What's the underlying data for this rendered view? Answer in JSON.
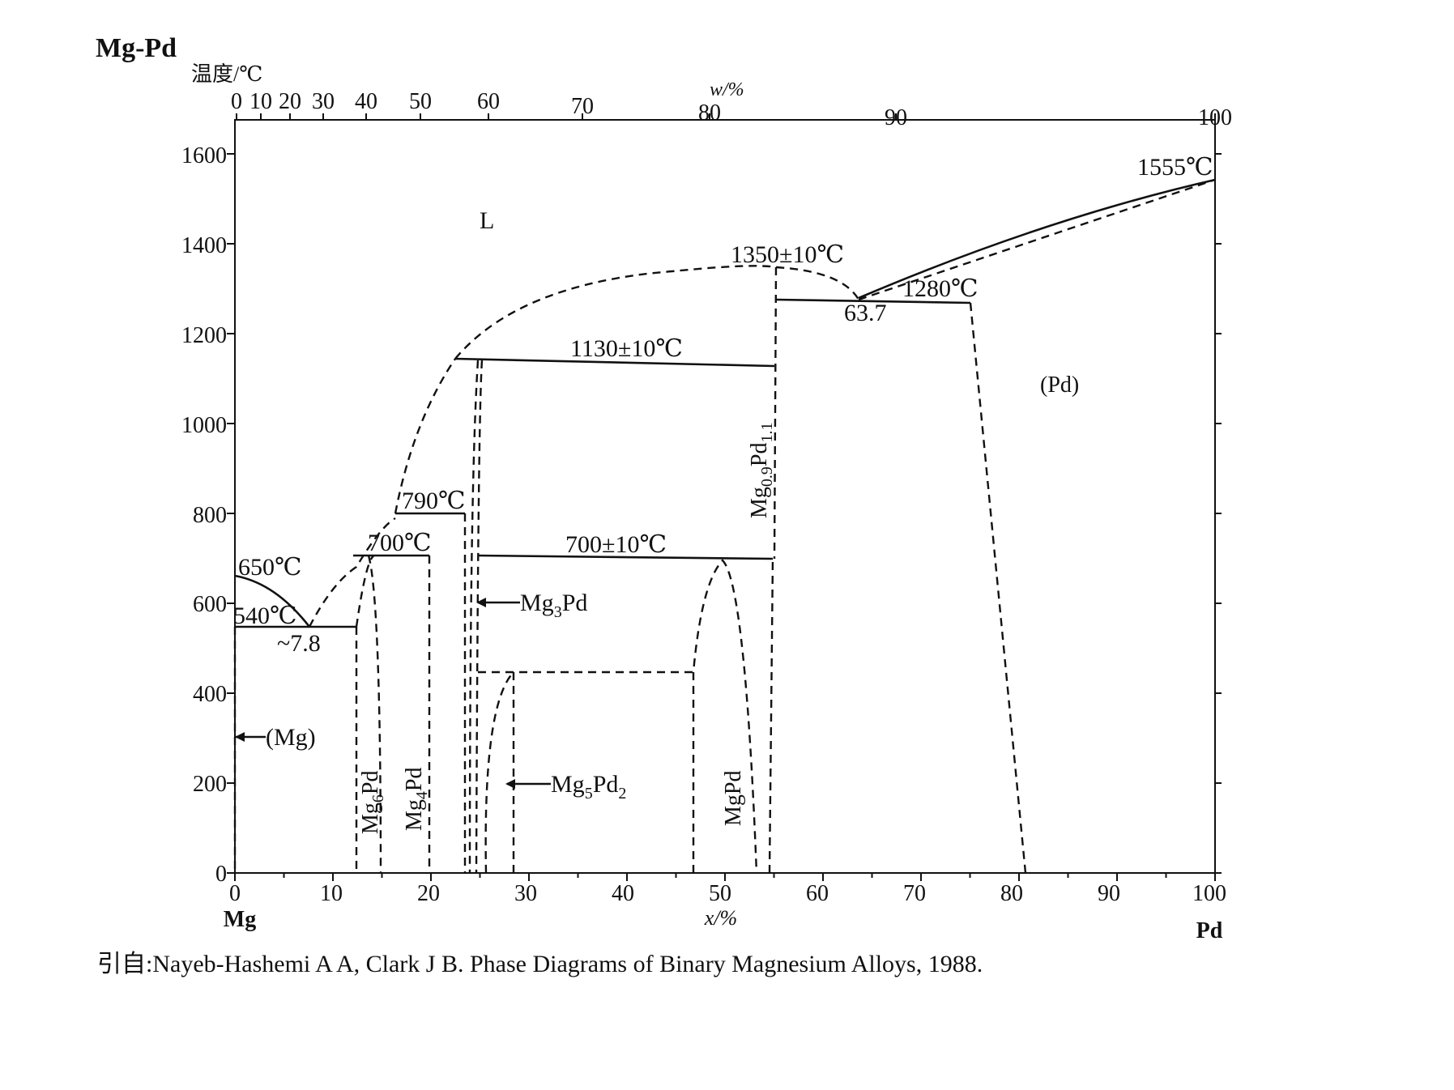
{
  "diagram": {
    "system_title": "Mg-Pd",
    "y_axis_label": "温度/℃",
    "top_axis_label": "w/%",
    "bottom_axis_label": "x/%",
    "left_element": "Mg",
    "right_element": "Pd",
    "y_ticks": [
      "0",
      "200",
      "400",
      "600",
      "800",
      "1000",
      "1200",
      "1400",
      "1600"
    ],
    "bottom_ticks": [
      "0",
      "10",
      "20",
      "30",
      "40",
      "50",
      "60",
      "70",
      "80",
      "90",
      "100"
    ],
    "top_ticks": [
      "0",
      "10",
      "20",
      "30",
      "40",
      "50",
      "60",
      "70",
      "80",
      "90",
      "100"
    ]
  },
  "regions": {
    "liquid": "L",
    "pd_solid": "(Pd)",
    "mg_solid": "(Mg)"
  },
  "phases": {
    "mg6pd": {
      "main": "Mg",
      "sub": "6",
      "tail": "Pd"
    },
    "mg4pd": {
      "main": "Mg",
      "sub": "4",
      "tail": "Pd"
    },
    "mg3pd": {
      "main": "Mg",
      "sub": "3",
      "tail": "Pd"
    },
    "mg5pd2": {
      "main": "Mg",
      "sub": "5",
      "tail": "Pd",
      "sub2": "2"
    },
    "mgpd": {
      "main": "MgPd"
    },
    "mg09pd11": {
      "main": "Mg",
      "sub": "0.9",
      "tail": "Pd",
      "sub2": "1.1"
    }
  },
  "annotations": {
    "t650": "650℃",
    "t540": "540℃",
    "c78": "~7.8",
    "t700a": "700℃",
    "t790": "790℃",
    "t1130": "1130±10℃",
    "t700b": "700±10℃",
    "t1350": "1350±10℃",
    "t1280": "1280℃",
    "c637": "63.7",
    "t1555": "1555℃"
  },
  "citation": {
    "prefix": "引自:",
    "text": "Nayeb-Hashemi A A, Clark J B.  Phase Diagrams of Binary Magnesium Alloys, 1988."
  }
}
